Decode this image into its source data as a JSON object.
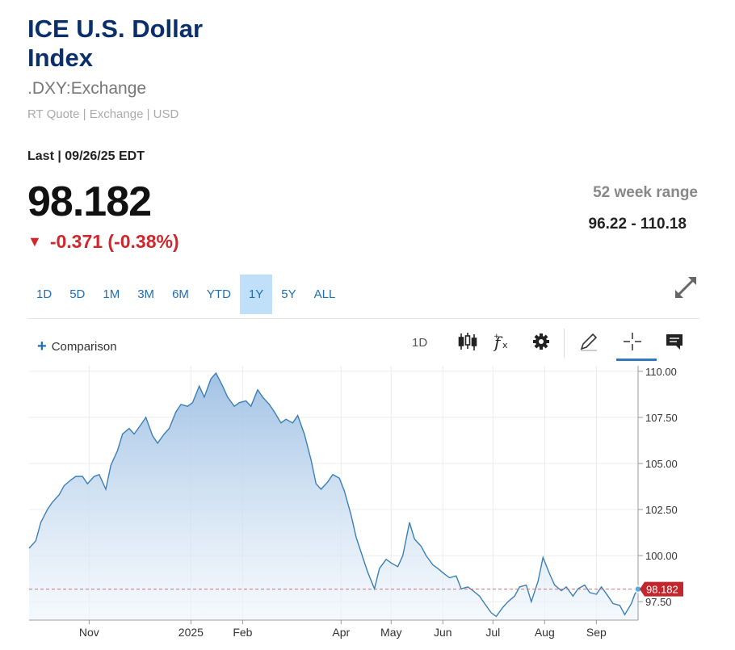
{
  "header": {
    "title": "ICE U.S. Dollar Index",
    "symbol": ".DXY:Exchange",
    "quote_meta": "RT Quote | Exchange | USD",
    "last_label": "Last | 09/26/25 EDT",
    "price": "98.182",
    "change": "-0.371 (-0.38%)",
    "range_label": "52 week range",
    "range_value": "96.22 - 110.18"
  },
  "colors": {
    "up": "#2f6fb3",
    "down": "#d0272d",
    "line": "#3b7fb6",
    "area": "#c9dcf0",
    "marker": "#c2272d"
  },
  "tabs": [
    "1D",
    "5D",
    "1M",
    "3M",
    "6M",
    "YTD",
    "1Y",
    "5Y",
    "ALL"
  ],
  "active_tab": "1Y",
  "toolbar": {
    "comparison_label": "Comparison",
    "interval_label": "1D",
    "icons": [
      "candlestick-icon",
      "function-icon",
      "gear-icon",
      "pencil-icon",
      "crosshair-icon",
      "comment-icon",
      "expand-icon"
    ]
  },
  "chart_data": {
    "type": "area",
    "y_ticks": [
      "110.00",
      "107.50",
      "105.00",
      "102.50",
      "100.00",
      "97.50"
    ],
    "y_tick_values": [
      110.0,
      107.5,
      105.0,
      102.5,
      100.0,
      97.5
    ],
    "ylim": [
      96.5,
      110.3
    ],
    "x_ticks": [
      {
        "date": "2024-11-01",
        "label": "Nov"
      },
      {
        "date": "2025-01-01",
        "label": "2025"
      },
      {
        "date": "2025-02-01",
        "label": "Feb"
      },
      {
        "date": "2025-04-01",
        "label": "Apr"
      },
      {
        "date": "2025-05-01",
        "label": "May"
      },
      {
        "date": "2025-06-01",
        "label": "Jun"
      },
      {
        "date": "2025-07-01",
        "label": "Jul"
      },
      {
        "date": "2025-08-01",
        "label": "Aug"
      },
      {
        "date": "2025-09-01",
        "label": "Sep"
      }
    ],
    "xlim": [
      "2024-09-26",
      "2025-09-26"
    ],
    "last_value": "98.182",
    "series": [
      {
        "values": [
          [
            "2024-09-26",
            100.4
          ],
          [
            "2024-09-30",
            100.8
          ],
          [
            "2024-10-03",
            101.8
          ],
          [
            "2024-10-07",
            102.5
          ],
          [
            "2024-10-10",
            102.9
          ],
          [
            "2024-10-14",
            103.3
          ],
          [
            "2024-10-17",
            103.8
          ],
          [
            "2024-10-21",
            104.1
          ],
          [
            "2024-10-24",
            104.3
          ],
          [
            "2024-10-28",
            104.3
          ],
          [
            "2024-10-31",
            103.9
          ],
          [
            "2024-11-04",
            104.3
          ],
          [
            "2024-11-07",
            104.4
          ],
          [
            "2024-11-11",
            103.6
          ],
          [
            "2024-11-14",
            104.9
          ],
          [
            "2024-11-18",
            105.7
          ],
          [
            "2024-11-21",
            106.6
          ],
          [
            "2024-11-25",
            106.9
          ],
          [
            "2024-11-28",
            106.6
          ],
          [
            "2024-12-02",
            107.1
          ],
          [
            "2024-12-05",
            107.5
          ],
          [
            "2024-12-09",
            106.5
          ],
          [
            "2024-12-12",
            106.1
          ],
          [
            "2024-12-16",
            106.6
          ],
          [
            "2024-12-19",
            106.9
          ],
          [
            "2024-12-23",
            107.8
          ],
          [
            "2024-12-26",
            108.2
          ],
          [
            "2024-12-30",
            108.1
          ],
          [
            "2025-01-02",
            108.3
          ],
          [
            "2025-01-06",
            109.2
          ],
          [
            "2025-01-09",
            108.6
          ],
          [
            "2025-01-13",
            109.6
          ],
          [
            "2025-01-16",
            109.9
          ],
          [
            "2025-01-20",
            109.2
          ],
          [
            "2025-01-23",
            108.6
          ],
          [
            "2025-01-27",
            108.1
          ],
          [
            "2025-01-30",
            108.3
          ],
          [
            "2025-02-03",
            108.4
          ],
          [
            "2025-02-06",
            108.1
          ],
          [
            "2025-02-10",
            109.0
          ],
          [
            "2025-02-13",
            108.6
          ],
          [
            "2025-02-17",
            108.2
          ],
          [
            "2025-02-20",
            107.8
          ],
          [
            "2025-02-24",
            107.2
          ],
          [
            "2025-02-27",
            107.4
          ],
          [
            "2025-03-03",
            107.2
          ],
          [
            "2025-03-06",
            107.6
          ],
          [
            "2025-03-10",
            106.6
          ],
          [
            "2025-03-14",
            105.2
          ],
          [
            "2025-03-17",
            103.9
          ],
          [
            "2025-03-20",
            103.6
          ],
          [
            "2025-03-24",
            104.0
          ],
          [
            "2025-03-27",
            104.4
          ],
          [
            "2025-03-31",
            104.2
          ],
          [
            "2025-04-03",
            103.5
          ],
          [
            "2025-04-07",
            102.2
          ],
          [
            "2025-04-10",
            101.0
          ],
          [
            "2025-04-14",
            99.9
          ],
          [
            "2025-04-17",
            99.1
          ],
          [
            "2025-04-21",
            98.2
          ],
          [
            "2025-04-24",
            99.3
          ],
          [
            "2025-04-28",
            99.8
          ],
          [
            "2025-05-01",
            99.6
          ],
          [
            "2025-05-05",
            99.4
          ],
          [
            "2025-05-08",
            100.0
          ],
          [
            "2025-05-12",
            101.8
          ],
          [
            "2025-05-15",
            100.9
          ],
          [
            "2025-05-19",
            100.5
          ],
          [
            "2025-05-22",
            100.0
          ],
          [
            "2025-05-26",
            99.5
          ],
          [
            "2025-05-29",
            99.3
          ],
          [
            "2025-06-02",
            99.0
          ],
          [
            "2025-06-05",
            98.8
          ],
          [
            "2025-06-09",
            98.9
          ],
          [
            "2025-06-12",
            98.2
          ],
          [
            "2025-06-16",
            98.3
          ],
          [
            "2025-06-19",
            98.1
          ],
          [
            "2025-06-23",
            97.8
          ],
          [
            "2025-06-26",
            97.4
          ],
          [
            "2025-06-30",
            96.9
          ],
          [
            "2025-07-03",
            96.7
          ],
          [
            "2025-07-07",
            97.2
          ],
          [
            "2025-07-10",
            97.5
          ],
          [
            "2025-07-14",
            97.8
          ],
          [
            "2025-07-17",
            98.3
          ],
          [
            "2025-07-21",
            98.4
          ],
          [
            "2025-07-24",
            97.5
          ],
          [
            "2025-07-28",
            98.6
          ],
          [
            "2025-07-31",
            99.9
          ],
          [
            "2025-08-04",
            99.0
          ],
          [
            "2025-08-07",
            98.4
          ],
          [
            "2025-08-11",
            98.1
          ],
          [
            "2025-08-14",
            98.3
          ],
          [
            "2025-08-18",
            97.8
          ],
          [
            "2025-08-21",
            98.2
          ],
          [
            "2025-08-25",
            98.4
          ],
          [
            "2025-08-28",
            98.0
          ],
          [
            "2025-09-01",
            97.9
          ],
          [
            "2025-09-04",
            98.3
          ],
          [
            "2025-09-08",
            97.8
          ],
          [
            "2025-09-11",
            97.4
          ],
          [
            "2025-09-15",
            97.3
          ],
          [
            "2025-09-18",
            96.8
          ],
          [
            "2025-09-22",
            97.4
          ],
          [
            "2025-09-24",
            97.9
          ],
          [
            "2025-09-26",
            98.182
          ]
        ]
      }
    ]
  }
}
